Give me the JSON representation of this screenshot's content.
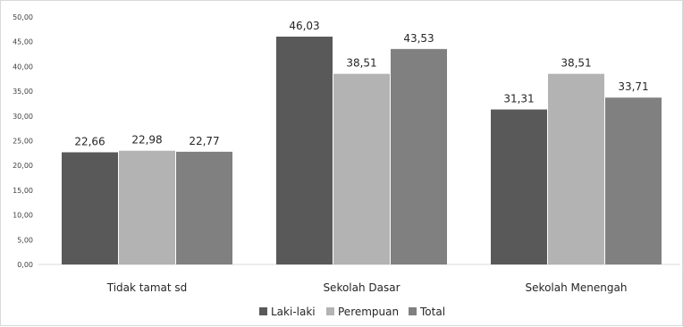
{
  "chart_data": {
    "type": "bar",
    "title": "",
    "xlabel": "",
    "ylabel": "",
    "ylim": [
      0,
      50
    ],
    "y_ticks": [
      "0,00",
      "5,00",
      "10,00",
      "15,00",
      "20,00",
      "25,00",
      "30,00",
      "35,00",
      "40,00",
      "45,00",
      "50,00"
    ],
    "grid": false,
    "legend_position": "bottom",
    "categories": [
      "Tidak tamat sd",
      "Sekolah Dasar",
      "Sekolah Menengah"
    ],
    "series": [
      {
        "name": "Laki-laki",
        "color": "#595959",
        "values": [
          22.66,
          46.03,
          31.31
        ],
        "labels": [
          "22,66",
          "46,03",
          "31,31"
        ]
      },
      {
        "name": "Perempuan",
        "color": "#b3b3b3",
        "values": [
          22.98,
          38.51,
          38.51
        ],
        "labels": [
          "22,98",
          "38,51",
          "38,51"
        ]
      },
      {
        "name": "Total",
        "color": "#808080",
        "values": [
          22.77,
          43.53,
          33.71
        ],
        "labels": [
          "22,77",
          "43,53",
          "33,71"
        ]
      }
    ]
  }
}
